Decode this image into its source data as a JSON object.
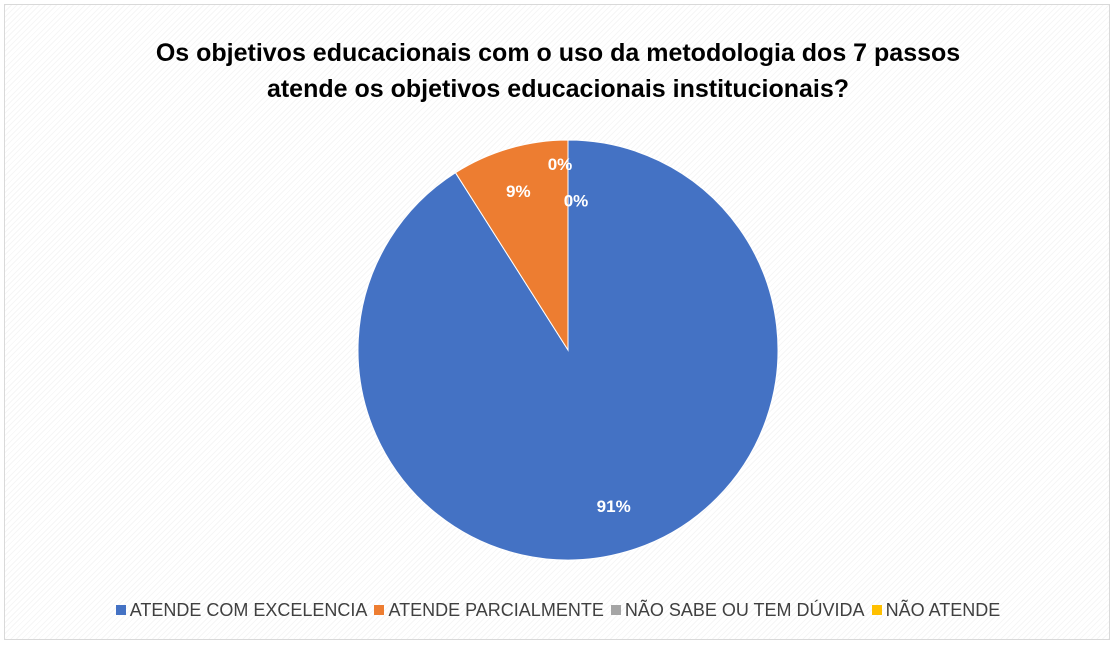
{
  "chart_data": {
    "type": "pie",
    "title": [
      "Os objetivos educacionais com o uso da metodologia dos 7 passos",
      "atende  os objetivos educacionais institucionais?"
    ],
    "legend_position": "bottom",
    "slices": [
      {
        "name": "ATENDE COM EXCELENCIA",
        "value": 91,
        "label": "91%",
        "color": "#4472C4"
      },
      {
        "name": "ATENDE PARCIALMENTE",
        "value": 9,
        "label": "9%",
        "color": "#ED7D31"
      },
      {
        "name": "NÃO SABE OU TEM DÚVIDA",
        "value": 0,
        "label": "0%",
        "color": "#A5A5A5"
      },
      {
        "name": "NÃO ATENDE",
        "value": 0,
        "label": "0%",
        "color": "#FFC000"
      }
    ]
  }
}
